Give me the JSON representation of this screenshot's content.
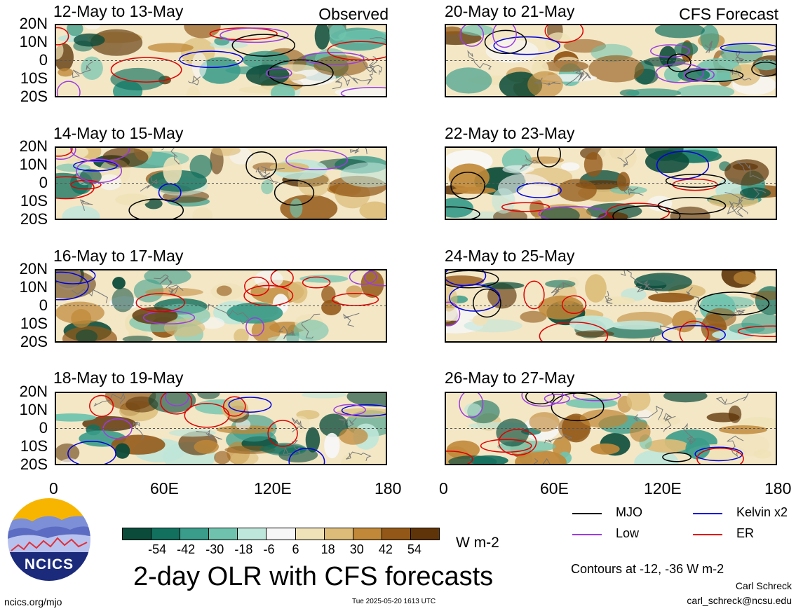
{
  "panels": [
    {
      "title": "12-May to 13-May",
      "tag": "Observed",
      "seed": 3
    },
    {
      "title": "14-May to 15-May",
      "tag": "",
      "seed": 7
    },
    {
      "title": "16-May to 17-May",
      "tag": "",
      "seed": 11
    },
    {
      "title": "18-May to 19-May",
      "tag": "",
      "seed": 19
    },
    {
      "title": "20-May to 21-May",
      "tag": "CFS Forecast",
      "seed": 23
    },
    {
      "title": "22-May to 23-May",
      "tag": "",
      "seed": 29
    },
    {
      "title": "24-May to 25-May",
      "tag": "",
      "seed": 31
    },
    {
      "title": "26-May to 27-May",
      "tag": "",
      "seed": 37
    }
  ],
  "lat_labels": [
    "20N",
    "10N",
    "0",
    "10S",
    "20S"
  ],
  "lon_labels": [
    "0",
    "60E",
    "120E",
    "180"
  ],
  "colorbar": {
    "ticks": [
      "-54",
      "-42",
      "-30",
      "-18",
      "-6",
      "6",
      "18",
      "30",
      "42",
      "54"
    ],
    "colors": [
      "#0b4b3a",
      "#12705e",
      "#3a9c8a",
      "#6fc3ae",
      "#bfe6da",
      "#f7f7f7",
      "#f0e2b8",
      "#dcbc78",
      "#c08838",
      "#935818",
      "#5e3408"
    ],
    "units": "W m-2"
  },
  "legend": [
    {
      "label": "MJO",
      "color": "#000000"
    },
    {
      "label": "Kelvin x2",
      "color": "#0000dd"
    },
    {
      "label": "Low",
      "color": "#9a3ce0"
    },
    {
      "label": "ER",
      "color": "#e00000"
    }
  ],
  "contour_note": "Contours at -12, -36 W m-2",
  "title": "2-day OLR with CFS forecasts",
  "logo_text": "NCICS",
  "footer": {
    "url": "ncics.org/mjo",
    "timestamp": "Tue 2025-05-20 1613 UTC",
    "author": "Carl Schreck",
    "email": "carl_schreck@ncsu.edu"
  },
  "chart_data": {
    "type": "heatmap",
    "title": "2-day OLR with CFS forecasts",
    "xlabel": "",
    "ylabel": "",
    "xlim": [
      0,
      180
    ],
    "ylim": [
      -20,
      20
    ],
    "x_ticks": [
      "0",
      "60E",
      "120E",
      "180"
    ],
    "y_ticks": [
      "20N",
      "10N",
      "0",
      "10S",
      "20S"
    ],
    "color_levels": [
      -54,
      -42,
      -30,
      -18,
      -6,
      6,
      18,
      30,
      42,
      54
    ],
    "units": "W m-2",
    "contour_levels": [
      -12,
      -36
    ],
    "series": [
      {
        "name": "MJO"
      },
      {
        "name": "Kelvin x2"
      },
      {
        "name": "Low"
      },
      {
        "name": "ER"
      }
    ],
    "panels": [
      "12-May to 13-May",
      "14-May to 15-May",
      "16-May to 17-May",
      "18-May to 19-May",
      "20-May to 21-May",
      "22-May to 23-May",
      "24-May to 25-May",
      "26-May to 27-May"
    ]
  }
}
